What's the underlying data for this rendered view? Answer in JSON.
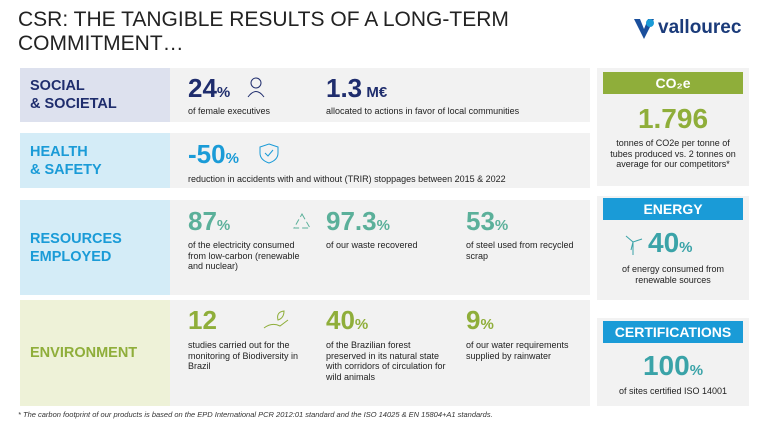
{
  "header": {
    "title": "CSR: THE TANGIBLE RESULTS OF A LONG-TERM COMMITMENT…",
    "logo": "vallourec"
  },
  "sections": [
    {
      "label": "SOCIAL\n& SOCIETAL",
      "stats": [
        {
          "value": "24",
          "unit": "%",
          "text": "of female executives"
        },
        {
          "value": "1.3",
          "unit": " M€",
          "text": "allocated to actions in favor of local communities"
        }
      ]
    },
    {
      "label": "HEALTH\n& SAFETY",
      "stats": [
        {
          "value": "-50",
          "unit": "%",
          "text": "reduction in accidents with and without (TRIR) stoppages between 2015 & 2022"
        }
      ]
    },
    {
      "label": "RESOURCES\nEMPLOYED",
      "stats": [
        {
          "value": "87",
          "unit": "%",
          "text": "of the electricity consumed from low-carbon (renewable and nuclear)"
        },
        {
          "value": "97.3",
          "unit": "%",
          "text": "of our waste recovered"
        },
        {
          "value": "53",
          "unit": "%",
          "text": "of steel used from recycled scrap"
        }
      ]
    },
    {
      "label": "ENVIRONMENT",
      "stats": [
        {
          "value": "12",
          "unit": "",
          "text": "studies carried out for the monitoring of Biodiversity in Brazil"
        },
        {
          "value": "40",
          "unit": "%",
          "text": "of the Brazilian forest preserved in its natural state with corridors of circulation for wild animals"
        },
        {
          "value": "9",
          "unit": "%",
          "text": "of our water requirements supplied by rainwater"
        }
      ]
    }
  ],
  "sidebar": [
    {
      "heading": "CO₂e",
      "value": "1.796",
      "unit": "",
      "text": "tonnes of CO2e per tonne of tubes produced vs. 2 tonnes on average for our competitors*"
    },
    {
      "heading": "ENERGY",
      "value": "40",
      "unit": "%",
      "text": "of energy consumed from renewable sources"
    },
    {
      "heading": "CERTIFICATIONS",
      "value": "100",
      "unit": "%",
      "text": "of sites certified ISO 14001"
    }
  ],
  "footnote": "* The carbon footprint of our products is based on the EPD International PCR 2012:01 standard and the ISO 14025 & EN 15804+A1 standards."
}
